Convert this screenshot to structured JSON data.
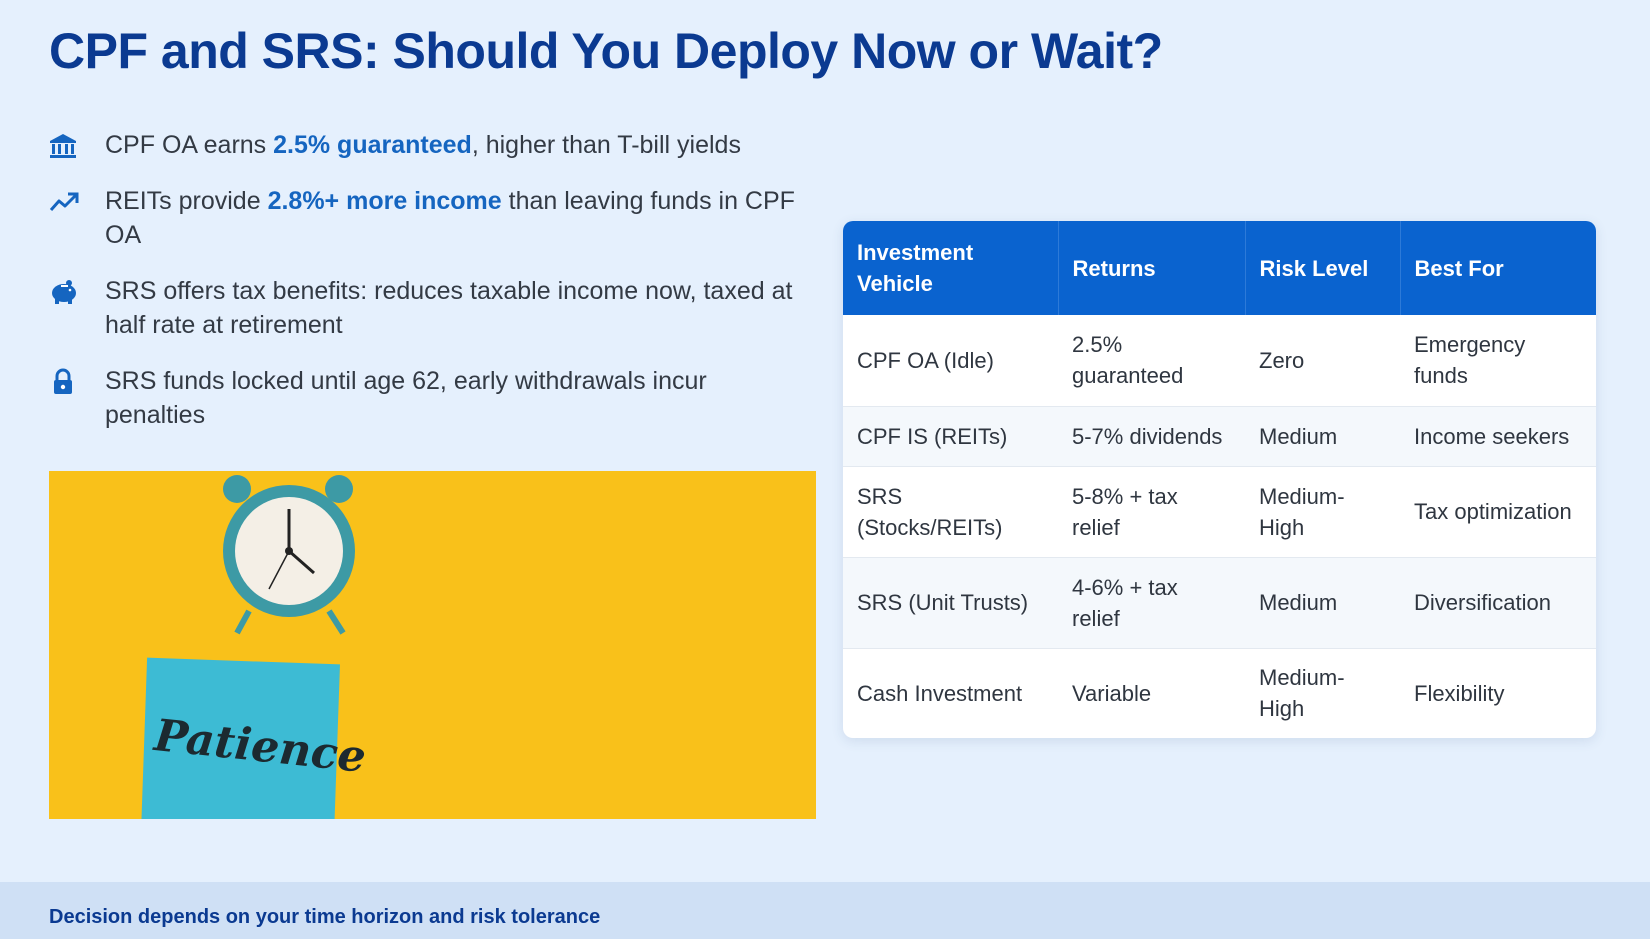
{
  "title": "CPF and SRS: Should You Deploy Now or Wait?",
  "bullets": [
    {
      "icon": "bank-icon",
      "pre": "CPF OA earns ",
      "highlight": "2.5% guaranteed",
      "post": ", higher than T-bill yields"
    },
    {
      "icon": "trending-up-icon",
      "pre": "REITs provide ",
      "highlight": "2.8%+ more income",
      "post": " than leaving funds in CPF OA"
    },
    {
      "icon": "piggy-bank-icon",
      "pre": "SRS offers tax benefits: reduces taxable income now, taxed at half rate at retirement",
      "highlight": "",
      "post": ""
    },
    {
      "icon": "lock-icon",
      "pre": "SRS funds locked until age 62, early withdrawals incur penalties",
      "highlight": "",
      "post": ""
    }
  ],
  "image": {
    "note_text": "Patience"
  },
  "table": {
    "headers": [
      "Investment Vehicle",
      "Returns",
      "Risk Level",
      "Best For"
    ],
    "rows": [
      [
        "CPF OA (Idle)",
        "2.5% guaranteed",
        "Zero",
        "Emergency funds"
      ],
      [
        "CPF IS (REITs)",
        "5-7% dividends",
        "Medium",
        "Income seekers"
      ],
      [
        "SRS (Stocks/REITs)",
        "5-8% + tax relief",
        "Medium-High",
        "Tax optimization"
      ],
      [
        "SRS (Unit Trusts)",
        "4-6% + tax relief",
        "Medium",
        "Diversification"
      ],
      [
        "Cash Investment",
        "Variable",
        "Medium-High",
        "Flexibility"
      ]
    ]
  },
  "footer": "Decision depends on your time horizon and risk tolerance",
  "colors": {
    "title": "#0b3a91",
    "accent": "#1565c0",
    "header_bg": "#0a63cf",
    "photo_bg": "#f9c11a"
  }
}
